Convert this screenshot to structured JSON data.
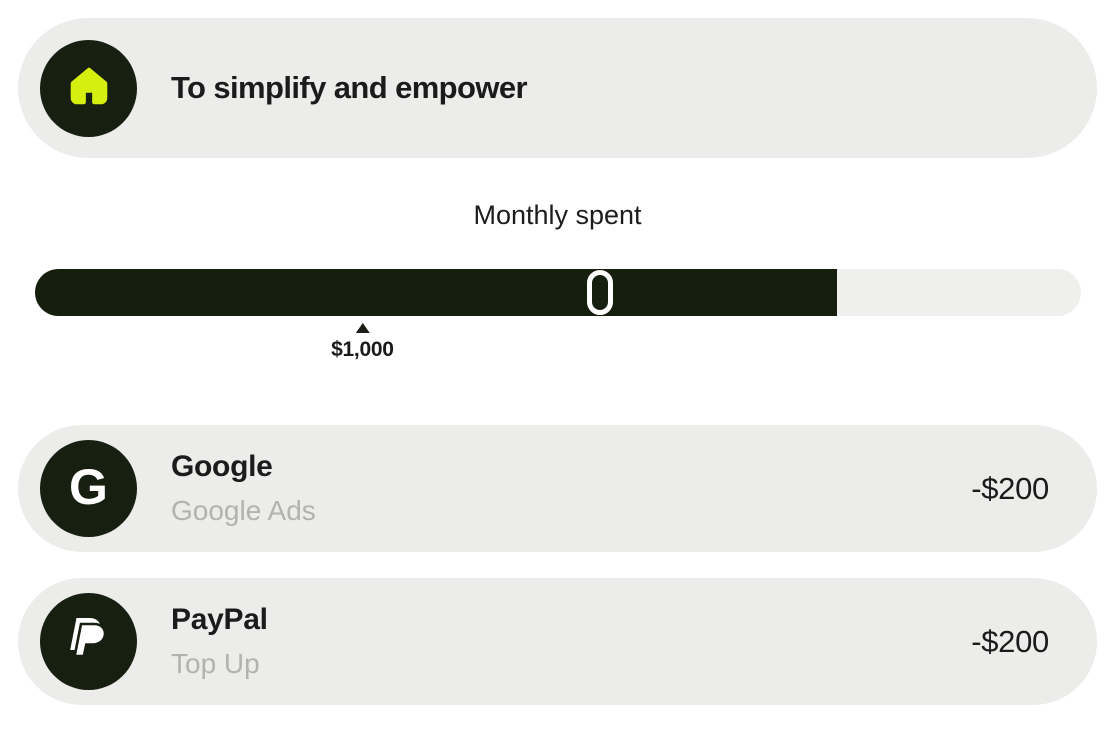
{
  "colors": {
    "surface": "#FFFFFF",
    "card_bg": "#ECECEA",
    "dark": "#161E0E",
    "accent_yellow_green": "#D5EF0F",
    "track": "#EFEFED",
    "text": "#1B1B1B",
    "muted": "#B2B2B0"
  },
  "header": {
    "title": "To simplify and empower",
    "icon": "home-icon"
  },
  "spending": {
    "title": "Monthly spent",
    "progress_percent": 76.7,
    "handle_position_percent": 54,
    "marker": {
      "label": "$1,000",
      "position_percent": 31.3
    }
  },
  "transactions": [
    {
      "name": "Google",
      "subtitle": "Google Ads",
      "amount": "-$200",
      "icon": "google-logo",
      "monogram": "G"
    },
    {
      "name": "PayPal",
      "subtitle": "Top Up",
      "amount": "-$200",
      "icon": "paypal-logo"
    }
  ]
}
